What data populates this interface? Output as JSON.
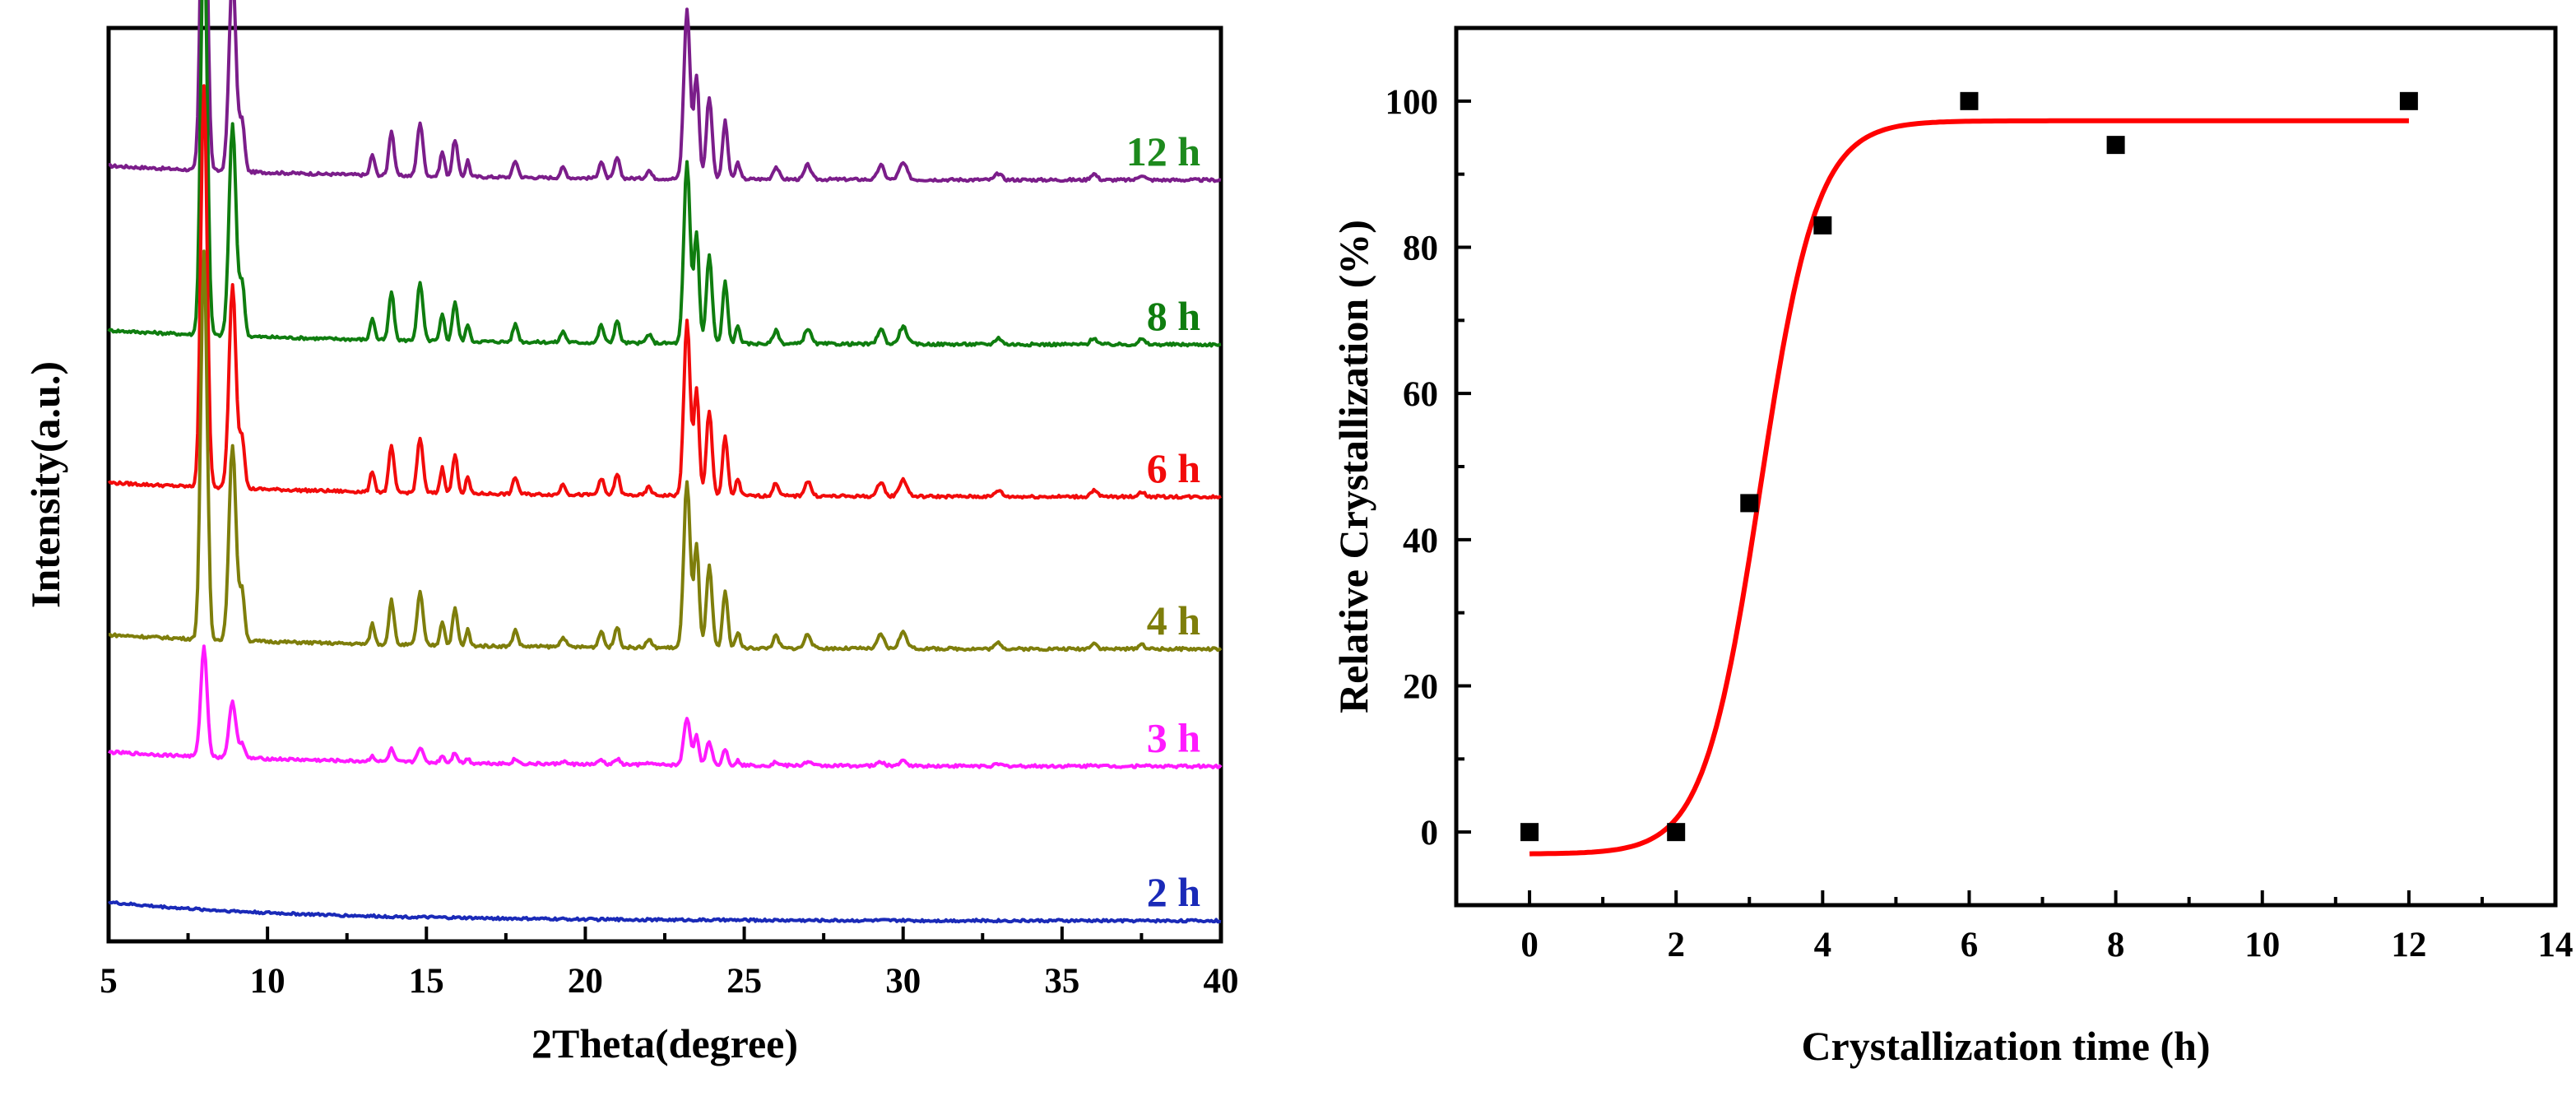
{
  "chart_data": [
    {
      "type": "line",
      "title": "",
      "xlabel": "2Theta(degree)",
      "ylabel": "Intensity(a.u.)",
      "xlim": [
        5,
        40
      ],
      "xticks": [
        5,
        10,
        15,
        20,
        25,
        30,
        35,
        40
      ],
      "yticks_shown": false,
      "peaks_2theta": [
        8.0,
        8.9,
        13.9,
        14.8,
        15.9,
        23.2,
        23.9,
        24.4
      ],
      "series": [
        {
          "name": "12 h",
          "label": "12 h",
          "color": "#7b1d8a",
          "baseline": 18.5,
          "scale": 1.0,
          "curved_baseline": false
        },
        {
          "name": "8 h",
          "label": "8 h",
          "color": "#0f7d0f",
          "baseline": 14.5,
          "scale": 1.07,
          "curved_baseline": false
        },
        {
          "name": "6 h",
          "label": "6 h",
          "color": "#f20b0b",
          "baseline": 10.8,
          "scale": 1.03,
          "curved_baseline": false
        },
        {
          "name": "4 h",
          "label": "4 h",
          "color": "#7e7e0b",
          "baseline": 7.1,
          "scale": 0.99,
          "curved_baseline": false
        },
        {
          "name": "3 h",
          "label": "3 h",
          "color": "#ff1aff",
          "baseline": 4.25,
          "scale": 0.28,
          "curved_baseline": false
        },
        {
          "name": "2 h",
          "label": "2 h",
          "color": "#1a2ab8",
          "baseline": 0.5,
          "scale": 0.0,
          "curved_baseline": true
        }
      ],
      "label_colors": {
        "12 h": "#1d8a1d",
        "8 h": "#0f7d0f",
        "6 h": "#f20b0b",
        "4 h": "#7e7e0b",
        "3 h": "#ff1aff",
        "2 h": "#1a2ab8"
      }
    },
    {
      "type": "scatter",
      "title": "",
      "xlabel": "Crystallization time (h)",
      "ylabel": "Relative Crystallization (%)",
      "xlim": [
        -1,
        14
      ],
      "ylim": [
        -10,
        110
      ],
      "xticks": [
        0,
        2,
        4,
        6,
        8,
        10,
        12,
        14
      ],
      "yticks": [
        0,
        20,
        40,
        60,
        80,
        100
      ],
      "points": {
        "x": [
          0,
          2,
          3,
          4,
          6,
          8,
          12
        ],
        "y": [
          0,
          0,
          45,
          83,
          100,
          94,
          100
        ]
      },
      "fit": {
        "type": "sigmoid",
        "color": "#ff0000",
        "bottom": -3,
        "top": 97.3,
        "x0": 3.15,
        "k": 2.6,
        "x_range": [
          0,
          12
        ]
      }
    }
  ]
}
